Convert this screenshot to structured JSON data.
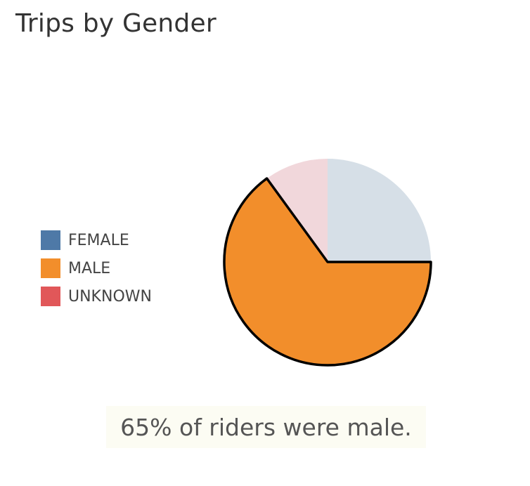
{
  "chart_data": {
    "type": "pie",
    "title": "Trips by Gender",
    "categories": [
      "FEMALE",
      "MALE",
      "UNKNOWN"
    ],
    "values": [
      25,
      65,
      10
    ],
    "unit": "%",
    "colors": {
      "FEMALE": "#4e79a7",
      "MALE": "#f28e2b",
      "UNKNOWN": "#e15759"
    },
    "slice_colors": {
      "FEMALE": "#d6dfe7",
      "MALE": "#f28e2b",
      "UNKNOWN": "#f1d7db"
    },
    "highlighted": "MALE",
    "legend_position": "left",
    "annotation": "65% of riders were male."
  }
}
